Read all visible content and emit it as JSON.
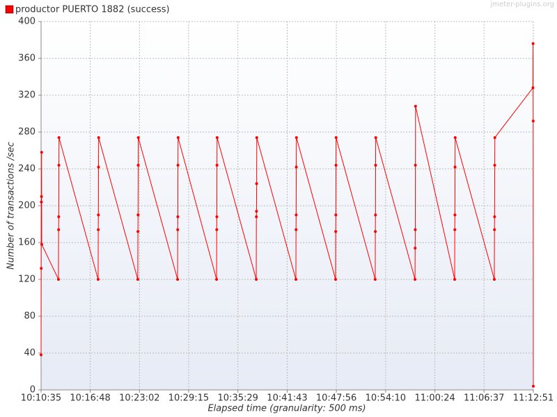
{
  "chart_data": {
    "type": "line",
    "annotation": "jmeter-plugins.org",
    "x_label": "Elapsed time (granularity: 500 ms)",
    "y_label": "Number of transactions /sec",
    "grid": true,
    "legend": "top-left",
    "xlim": [
      "10:10:35",
      "11:12:51"
    ],
    "xticks": [
      "10:10:35",
      "10:16:48",
      "10:23:02",
      "10:29:15",
      "10:35:29",
      "10:41:43",
      "10:47:56",
      "10:54:10",
      "11:00:24",
      "11:06:37",
      "11:12:51"
    ],
    "ylim": [
      0,
      400
    ],
    "yticks": [
      0,
      40,
      80,
      120,
      160,
      200,
      240,
      280,
      320,
      360,
      400
    ],
    "series": [
      {
        "name": "productor PUERTO 1882 (success)",
        "color": "#ff0000",
        "x": [
          "10:10:35",
          "10:10:36",
          "10:10:37",
          "10:10:38",
          "10:10:39",
          "10:10:40",
          "10:12:47",
          "10:12:48",
          "10:12:49",
          "10:12:50",
          "10:12:51",
          "10:17:48",
          "10:17:49",
          "10:17:50",
          "10:17:51",
          "10:17:52",
          "10:22:49",
          "10:22:50",
          "10:22:51",
          "10:22:52",
          "10:22:53",
          "10:27:51",
          "10:27:52",
          "10:27:53",
          "10:27:54",
          "10:27:55",
          "10:32:47",
          "10:32:48",
          "10:32:49",
          "10:32:50",
          "10:32:51",
          "10:37:48",
          "10:37:49",
          "10:37:50",
          "10:37:51",
          "10:37:52",
          "10:42:49",
          "10:42:50",
          "10:42:51",
          "10:42:52",
          "10:42:53",
          "10:47:50",
          "10:47:51",
          "10:47:52",
          "10:47:53",
          "10:47:54",
          "10:52:51",
          "10:52:52",
          "10:52:53",
          "10:52:54",
          "10:52:55",
          "10:57:53",
          "10:57:54",
          "10:57:55",
          "10:57:56",
          "10:57:57",
          "11:02:54",
          "11:02:55",
          "11:02:56",
          "11:02:57",
          "11:02:58",
          "11:07:55",
          "11:07:56",
          "11:07:57",
          "11:07:58",
          "11:07:59",
          "11:12:48",
          "11:12:49",
          "11:12:50",
          "11:12:51"
        ],
        "values": [
          38,
          132,
          204,
          210,
          258,
          158,
          120,
          174,
          188,
          244,
          274,
          120,
          174,
          190,
          242,
          274,
          120,
          172,
          190,
          244,
          274,
          120,
          174,
          188,
          244,
          274,
          120,
          174,
          188,
          244,
          274,
          120,
          188,
          194,
          224,
          274,
          120,
          174,
          190,
          242,
          274,
          120,
          172,
          190,
          244,
          274,
          120,
          172,
          190,
          244,
          274,
          120,
          154,
          174,
          244,
          308,
          120,
          174,
          190,
          242,
          274,
          120,
          174,
          188,
          244,
          274,
          328,
          376,
          292,
          4
        ]
      }
    ]
  }
}
